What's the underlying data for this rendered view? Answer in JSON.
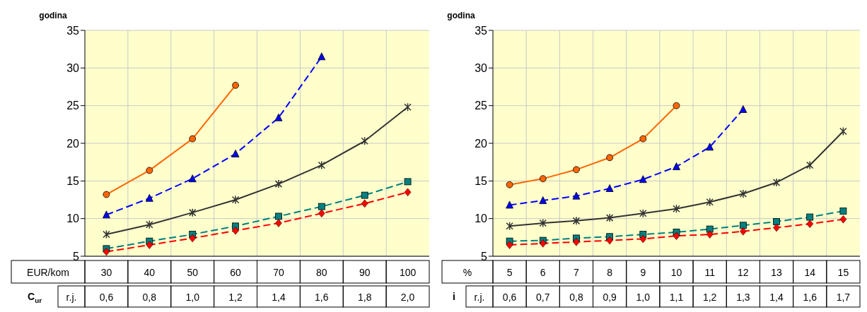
{
  "chart_data": [
    {
      "type": "line",
      "ylabel": "godina",
      "xlabel": "EUR/kom",
      "categories": [
        "30",
        "40",
        "50",
        "60",
        "70",
        "80",
        "90",
        "100"
      ],
      "ylim": [
        5,
        35
      ],
      "yticks": [
        5,
        10,
        15,
        20,
        25,
        30,
        35
      ],
      "grid": true,
      "series": [
        {
          "color": "#ff6600",
          "marker": "circle",
          "line_style": "solid",
          "values": [
            13.2,
            16.4,
            20.6,
            27.7,
            null,
            null,
            null,
            null
          ]
        },
        {
          "color": "#0000ff",
          "marker": "triangle",
          "line_style": "dashed",
          "values": [
            10.5,
            12.7,
            15.3,
            18.6,
            23.4,
            31.5,
            null,
            null
          ]
        },
        {
          "color": "#333333",
          "marker": "cross",
          "line_style": "solid",
          "values": [
            7.9,
            9.2,
            10.8,
            12.5,
            14.6,
            17.1,
            20.3,
            24.8
          ]
        },
        {
          "color": "#008080",
          "marker": "square",
          "line_style": "dashed",
          "values": [
            6.0,
            7.0,
            7.9,
            9.0,
            10.3,
            11.6,
            13.1,
            14.9
          ]
        },
        {
          "color": "#ff0000",
          "marker": "diamond",
          "line_style": "dashed",
          "values": [
            5.6,
            6.5,
            7.4,
            8.4,
            9.4,
            10.7,
            12.0,
            13.5
          ]
        }
      ],
      "annotations": [
        "C$_{ur}$",
        "r.j.",
        "0,6",
        "0,8",
        "1,0",
        "1,2",
        "1,4",
        "1,6",
        "1,8",
        "2,0"
      ]
    },
    {
      "type": "line",
      "ylabel": "godina",
      "xlabel": "%",
      "categories": [
        "5",
        "6",
        "7",
        "8",
        "9",
        "10",
        "11",
        "12",
        "13",
        "14",
        "15"
      ],
      "ylim": [
        5,
        35
      ],
      "yticks": [
        5,
        10,
        15,
        20,
        25,
        30,
        35
      ],
      "grid": true,
      "series": [
        {
          "color": "#ff6600",
          "marker": "circle",
          "line_style": "solid",
          "values": [
            14.5,
            15.3,
            16.5,
            18.1,
            20.6,
            25.0,
            null,
            null,
            null,
            null,
            null
          ]
        },
        {
          "color": "#0000ff",
          "marker": "triangle",
          "line_style": "dashed",
          "values": [
            11.8,
            12.4,
            13.0,
            14.0,
            15.2,
            16.9,
            19.5,
            24.5,
            null,
            null,
            null
          ]
        },
        {
          "color": "#333333",
          "marker": "cross",
          "line_style": "solid",
          "values": [
            9.0,
            9.4,
            9.7,
            10.1,
            10.7,
            11.3,
            12.2,
            13.3,
            14.8,
            17.1,
            21.6
          ]
        },
        {
          "color": "#008080",
          "marker": "square",
          "line_style": "dashed",
          "values": [
            7.0,
            7.1,
            7.4,
            7.6,
            7.9,
            8.2,
            8.6,
            9.1,
            9.6,
            10.2,
            11.0
          ]
        },
        {
          "color": "#ff0000",
          "marker": "diamond",
          "line_style": "dashed",
          "values": [
            6.5,
            6.7,
            6.9,
            7.1,
            7.3,
            7.7,
            7.9,
            8.3,
            8.8,
            9.3,
            9.9
          ]
        }
      ],
      "annotations": [
        "i",
        "r.j.",
        "0,6",
        "0,7",
        "0,8",
        "0,9",
        "1,0",
        "1,1",
        "1,2",
        "1,3",
        "1,4",
        "1,6",
        "1,7"
      ]
    }
  ]
}
